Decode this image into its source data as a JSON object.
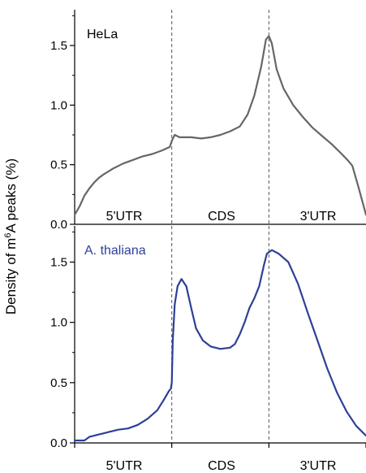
{
  "ylabel": "Density of m6A peaks (%)",
  "ylabel_parts": {
    "before": "Density of m",
    "sup": "6",
    "after": "A peaks (%)"
  },
  "colors": {
    "hela": "#666666",
    "athaliana": "#2e3f99",
    "axis": "#000000",
    "divider": "#555555"
  },
  "chart_data": [
    {
      "type": "line",
      "x_unit": "metagene position (0–3)",
      "ylim": [
        0,
        1.8
      ],
      "yticks": [
        0.0,
        0.5,
        1.0,
        1.5
      ],
      "ytick_labels": [
        "0.0",
        "0.5",
        "1.0",
        "1.5"
      ],
      "dividers": [
        1,
        2
      ],
      "region_labels": [
        "5'UTR",
        "CDS",
        "3'UTR"
      ],
      "grid": false,
      "series": [
        {
          "name": "HeLa",
          "color": "#666666",
          "points": [
            [
              0.0,
              0.08
            ],
            [
              0.05,
              0.15
            ],
            [
              0.1,
              0.24
            ],
            [
              0.15,
              0.3
            ],
            [
              0.2,
              0.35
            ],
            [
              0.25,
              0.39
            ],
            [
              0.3,
              0.42
            ],
            [
              0.4,
              0.47
            ],
            [
              0.5,
              0.51
            ],
            [
              0.6,
              0.54
            ],
            [
              0.7,
              0.57
            ],
            [
              0.8,
              0.59
            ],
            [
              0.9,
              0.62
            ],
            [
              0.98,
              0.65
            ],
            [
              1.0,
              0.7
            ],
            [
              1.03,
              0.75
            ],
            [
              1.08,
              0.73
            ],
            [
              1.2,
              0.73
            ],
            [
              1.3,
              0.72
            ],
            [
              1.4,
              0.73
            ],
            [
              1.5,
              0.75
            ],
            [
              1.6,
              0.78
            ],
            [
              1.7,
              0.82
            ],
            [
              1.78,
              0.92
            ],
            [
              1.85,
              1.08
            ],
            [
              1.92,
              1.32
            ],
            [
              1.97,
              1.55
            ],
            [
              2.0,
              1.58
            ],
            [
              2.03,
              1.52
            ],
            [
              2.08,
              1.3
            ],
            [
              2.15,
              1.14
            ],
            [
              2.25,
              1.0
            ],
            [
              2.35,
              0.9
            ],
            [
              2.45,
              0.81
            ],
            [
              2.55,
              0.74
            ],
            [
              2.65,
              0.67
            ],
            [
              2.75,
              0.59
            ],
            [
              2.82,
              0.53
            ],
            [
              2.86,
              0.49
            ],
            [
              2.92,
              0.32
            ],
            [
              2.97,
              0.17
            ],
            [
              3.0,
              0.08
            ]
          ]
        }
      ]
    },
    {
      "type": "line",
      "x_unit": "metagene position (0–3)",
      "ylim": [
        0,
        1.8
      ],
      "yticks": [
        0.0,
        0.5,
        1.0,
        1.5
      ],
      "ytick_labels": [
        "0.0",
        "0.5",
        "1.0",
        "1.5"
      ],
      "dividers": [
        1,
        2
      ],
      "region_labels": [
        "5'UTR",
        "CDS",
        "3'UTR"
      ],
      "grid": false,
      "series": [
        {
          "name": "A. thaliana",
          "color": "#2e3f99",
          "points": [
            [
              0.0,
              0.02
            ],
            [
              0.1,
              0.02
            ],
            [
              0.15,
              0.05
            ],
            [
              0.25,
              0.07
            ],
            [
              0.35,
              0.09
            ],
            [
              0.45,
              0.11
            ],
            [
              0.55,
              0.12
            ],
            [
              0.65,
              0.15
            ],
            [
              0.75,
              0.2
            ],
            [
              0.85,
              0.27
            ],
            [
              0.92,
              0.36
            ],
            [
              0.97,
              0.43
            ],
            [
              0.99,
              0.45
            ],
            [
              1.0,
              0.5
            ],
            [
              1.01,
              0.85
            ],
            [
              1.03,
              1.15
            ],
            [
              1.06,
              1.3
            ],
            [
              1.1,
              1.36
            ],
            [
              1.15,
              1.3
            ],
            [
              1.2,
              1.12
            ],
            [
              1.25,
              0.95
            ],
            [
              1.32,
              0.85
            ],
            [
              1.4,
              0.8
            ],
            [
              1.5,
              0.78
            ],
            [
              1.6,
              0.79
            ],
            [
              1.65,
              0.82
            ],
            [
              1.7,
              0.9
            ],
            [
              1.75,
              1.0
            ],
            [
              1.8,
              1.12
            ],
            [
              1.85,
              1.2
            ],
            [
              1.9,
              1.3
            ],
            [
              1.95,
              1.48
            ],
            [
              1.98,
              1.57
            ],
            [
              2.03,
              1.6
            ],
            [
              2.1,
              1.57
            ],
            [
              2.2,
              1.5
            ],
            [
              2.3,
              1.32
            ],
            [
              2.4,
              1.08
            ],
            [
              2.5,
              0.85
            ],
            [
              2.6,
              0.62
            ],
            [
              2.7,
              0.42
            ],
            [
              2.8,
              0.26
            ],
            [
              2.9,
              0.14
            ],
            [
              3.0,
              0.06
            ]
          ]
        }
      ]
    }
  ]
}
